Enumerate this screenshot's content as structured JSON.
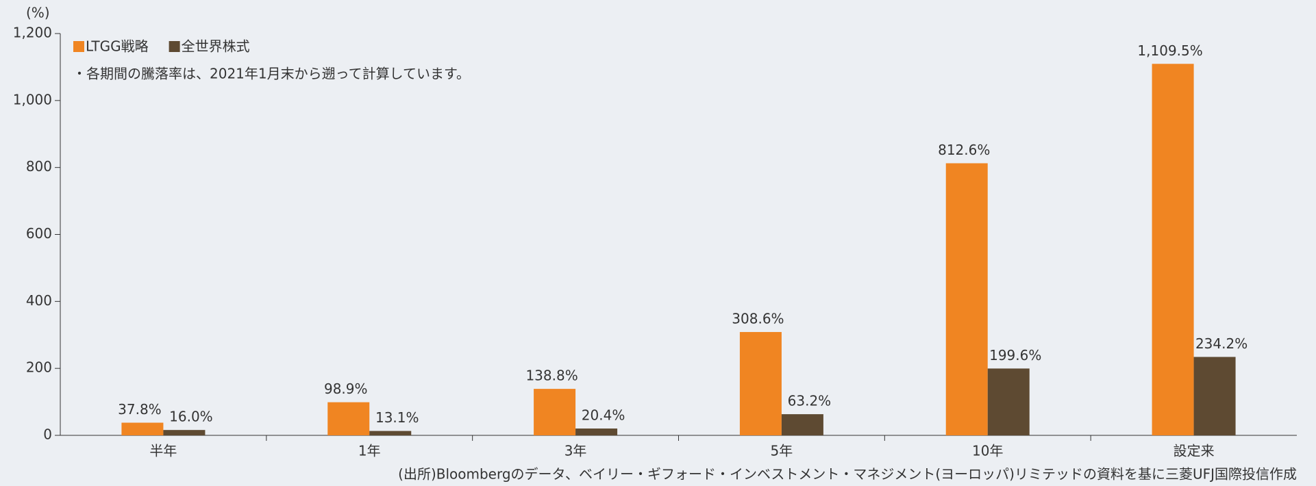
{
  "chart_data": {
    "type": "bar",
    "y_label": "(%)",
    "note": "・各期間の騰落率は、2021年1月末から遡って計算しています。",
    "source": "(出所)Bloombergのデータ、ベイリー・ギフォード・インベストメント・マネジメント(ヨーロッパ)リミテッドの資料を基に三菱UFJ国際投信作成",
    "categories": [
      "半年",
      "1年",
      "3年",
      "5年",
      "10年",
      "設定来"
    ],
    "series": [
      {
        "name": "LTGG戦略",
        "color": "#f08522",
        "values": [
          37.8,
          98.9,
          138.8,
          308.6,
          812.6,
          1109.5
        ],
        "value_labels": [
          "37.8%",
          "98.9%",
          "138.8%",
          "308.6%",
          "812.6%",
          "1,109.5%"
        ]
      },
      {
        "name": "全世界株式",
        "color": "#5e4a32",
        "values": [
          16.0,
          13.1,
          20.4,
          63.2,
          199.6,
          234.2
        ],
        "value_labels": [
          "16.0%",
          "13.1%",
          "20.4%",
          "63.2%",
          "199.6%",
          "234.2%"
        ]
      }
    ],
    "ylim": [
      0,
      1200
    ],
    "yticks": [
      0,
      200,
      400,
      600,
      800,
      {
        "value": 1000,
        "label": "1,000"
      },
      {
        "value": 1200,
        "label": "1,200"
      }
    ],
    "legend": "top-left"
  }
}
